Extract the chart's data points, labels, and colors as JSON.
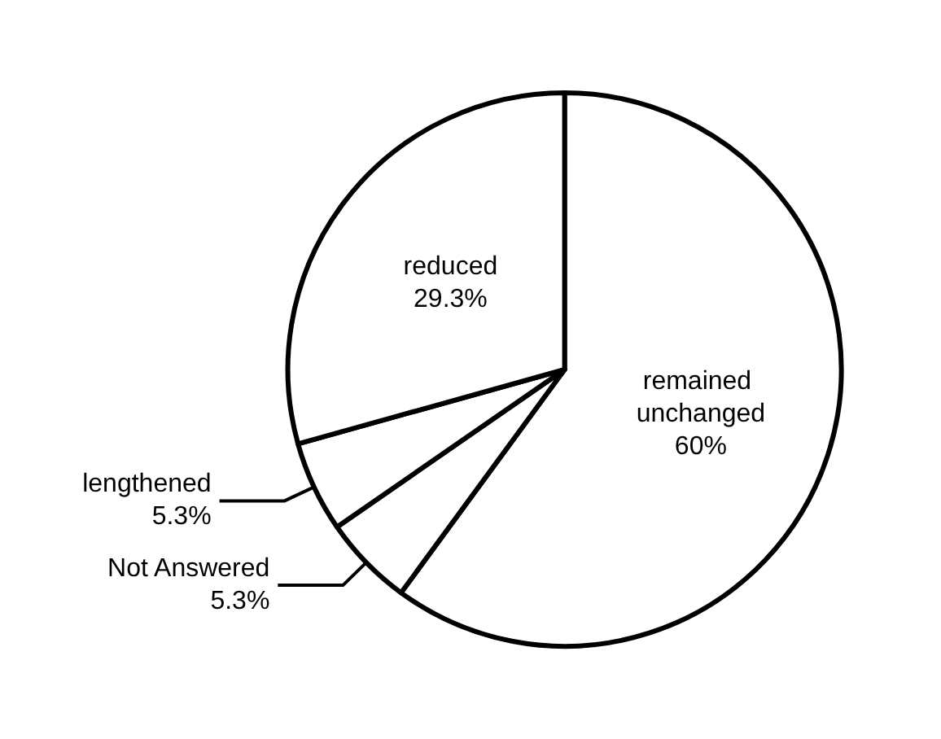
{
  "chart_data": {
    "type": "pie",
    "categories": [
      "remained unchanged",
      "Not Answered",
      "lengthened",
      "reduced"
    ],
    "values": [
      60,
      5.3,
      5.3,
      29.3
    ],
    "colors": [
      "#ffffff",
      "#ffffff",
      "#ffffff",
      "#ffffff"
    ],
    "value_labels": [
      "60%",
      "5.3%",
      "5.3%",
      "29.3%"
    ],
    "legend": false
  }
}
